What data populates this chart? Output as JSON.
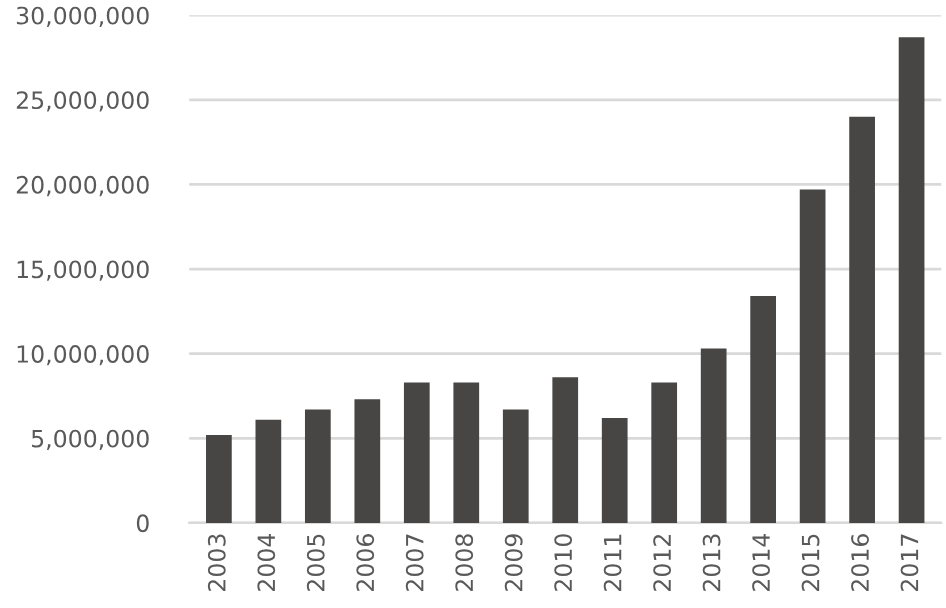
{
  "chart_data": {
    "type": "bar",
    "categories": [
      "2003",
      "2004",
      "2005",
      "2006",
      "2007",
      "2008",
      "2009",
      "2010",
      "2011",
      "2012",
      "2013",
      "2014",
      "2015",
      "2016",
      "2017"
    ],
    "values": [
      5200000,
      6100000,
      6700000,
      7300000,
      8300000,
      8300000,
      6700000,
      8600000,
      6200000,
      8300000,
      10300000,
      13400000,
      19700000,
      24000000,
      28700000
    ],
    "color": "#474645",
    "ylim": [
      0,
      30000000
    ],
    "yticks": [
      {
        "value": 0,
        "label": "0"
      },
      {
        "value": 5000000,
        "label": "5,000,000"
      },
      {
        "value": 10000000,
        "label": "10,000,000"
      },
      {
        "value": 15000000,
        "label": "15,000,000"
      },
      {
        "value": 20000000,
        "label": "20,000,000"
      },
      {
        "value": 25000000,
        "label": "25,000,000"
      },
      {
        "value": 30000000,
        "label": "30,000,000"
      }
    ],
    "grid": "y"
  }
}
